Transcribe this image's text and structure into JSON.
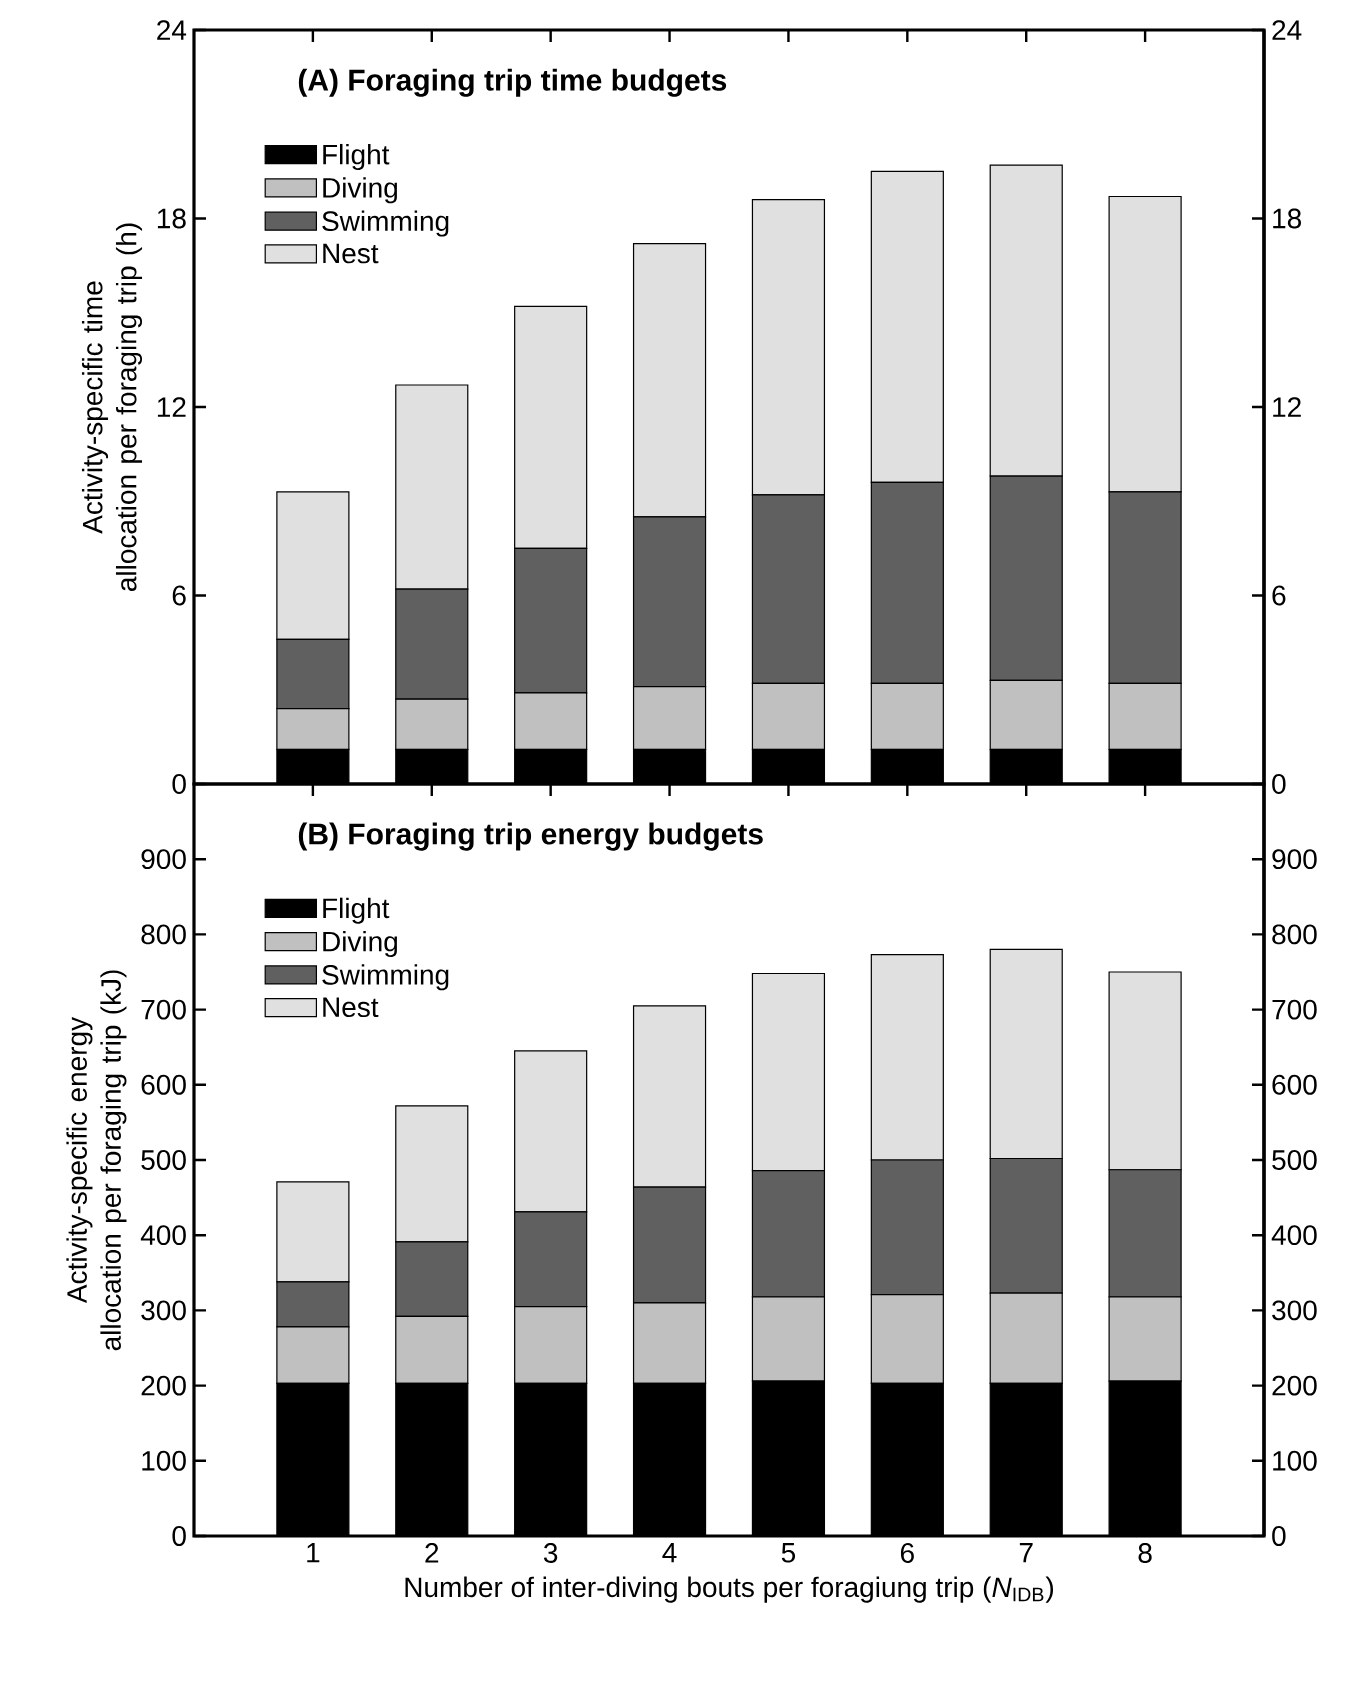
{
  "chart_data": [
    {
      "type": "bar",
      "title": "(A) Foraging trip time budgets",
      "ylabel": "Activity-specific time allocation per foraging trip (h)",
      "stacked": true,
      "legend": "top left",
      "tick_labels": "y",
      "categories": [
        "1",
        "2",
        "3",
        "4",
        "5",
        "6",
        "7",
        "8"
      ],
      "series": [
        {
          "name": "Flight",
          "color": "#000000",
          "values": [
            1.1,
            1.1,
            1.1,
            1.1,
            1.1,
            1.1,
            1.1,
            1.1
          ]
        },
        {
          "name": "Diving",
          "color": "#c0c0c0",
          "values": [
            1.3,
            1.6,
            1.8,
            2.0,
            2.1,
            2.1,
            2.2,
            2.1
          ]
        },
        {
          "name": "Swimming",
          "color": "#606060",
          "values": [
            2.2,
            3.5,
            4.6,
            5.4,
            6.0,
            6.4,
            6.5,
            6.1
          ]
        },
        {
          "name": "Nest",
          "color": "#e0e0e0",
          "values": [
            4.7,
            6.5,
            7.7,
            8.7,
            9.4,
            9.9,
            9.9,
            9.4
          ]
        }
      ],
      "ylim": [
        0,
        24
      ],
      "yticks": [
        0,
        6,
        12,
        18,
        24
      ],
      "y2lim": [
        0,
        24
      ],
      "y2ticks": [
        0,
        6,
        12,
        18,
        24
      ]
    },
    {
      "type": "bar",
      "title": "(B) Foraging trip energy budgets",
      "ylabel": "Activity-specific energy allocation per foraging trip (kJ)",
      "xlabel": "Number of inter-diving bouts per foragiung trip (*N*$_{IDB}$)",
      "stacked": true,
      "legend": "top left",
      "categories": [
        "1",
        "2",
        "3",
        "4",
        "5",
        "6",
        "7",
        "8"
      ],
      "series": [
        {
          "name": "Flight",
          "color": "#000000",
          "values": [
            203,
            203,
            203,
            203,
            206,
            203,
            203,
            206
          ]
        },
        {
          "name": "Diving",
          "color": "#c0c0c0",
          "values": [
            75,
            89,
            102,
            107,
            112,
            118,
            120,
            112
          ]
        },
        {
          "name": "Swimming",
          "color": "#606060",
          "values": [
            60,
            99,
            126,
            154,
            168,
            179,
            179,
            169
          ]
        },
        {
          "name": "Nest",
          "color": "#e0e0e0",
          "values": [
            133,
            181,
            214,
            241,
            262,
            273,
            278,
            263
          ]
        }
      ],
      "ylim": [
        0,
        1000
      ],
      "yticks": [
        0,
        100,
        200,
        300,
        400,
        500,
        600,
        700,
        800,
        900
      ],
      "y2lim": [
        0,
        1000
      ],
      "y2ticks": [
        0,
        100,
        200,
        300,
        400,
        500,
        600,
        700,
        800,
        900
      ]
    }
  ]
}
